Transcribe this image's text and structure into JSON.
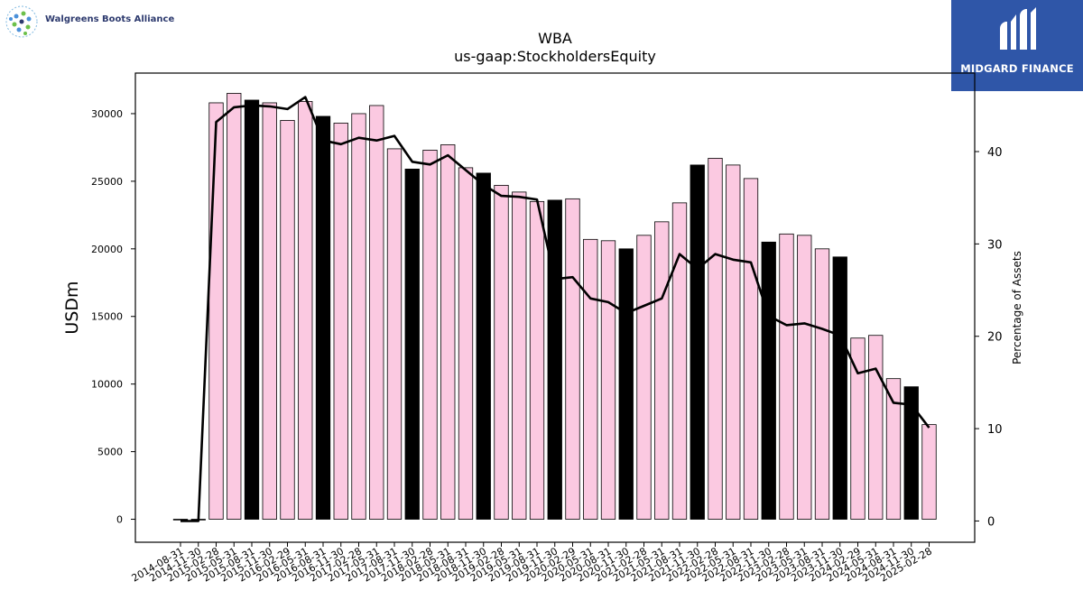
{
  "logos": {
    "left_text": "Walgreens Boots Alliance",
    "right_text": "MIDGARD FINANCE"
  },
  "chart_data": {
    "type": "bar",
    "title": "WBA",
    "subtitle": "us-gaap:StockholdersEquity",
    "ylabel": "USDm",
    "y2label": "Percentage of Assets",
    "ylim": [
      -1700,
      33000
    ],
    "y2lim": [
      -2.3,
      48.5
    ],
    "yticks": [
      0,
      5000,
      10000,
      15000,
      20000,
      25000,
      30000
    ],
    "y2ticks": [
      0,
      10,
      20,
      30,
      40
    ],
    "categories": [
      "2014-08-31",
      "2014-11-30",
      "2015-02-28",
      "2015-05-31",
      "2015-08-31",
      "2015-11-30",
      "2016-02-29",
      "2016-05-31",
      "2016-08-31",
      "2016-11-30",
      "2017-02-28",
      "2017-05-31",
      "2017-08-31",
      "2017-11-30",
      "2018-02-28",
      "2018-05-31",
      "2018-08-31",
      "2018-11-30",
      "2019-02-28",
      "2019-05-31",
      "2019-08-31",
      "2019-11-30",
      "2020-02-29",
      "2020-05-31",
      "2020-08-31",
      "2020-11-30",
      "2021-02-28",
      "2021-05-31",
      "2021-08-31",
      "2021-11-30",
      "2022-02-28",
      "2022-05-31",
      "2022-08-31",
      "2022-11-30",
      "2023-02-28",
      "2023-05-31",
      "2023-08-31",
      "2023-11-30",
      "2024-02-29",
      "2024-05-31",
      "2024-08-31",
      "2024-11-30",
      "2025-02-28"
    ],
    "series": [
      {
        "kind": "bar",
        "values": [
          0,
          0,
          30800,
          31500,
          31000,
          30800,
          29500,
          30900,
          29800,
          29300,
          30000,
          30600,
          27400,
          25900,
          27300,
          27700,
          26000,
          25600,
          24700,
          24200,
          23500,
          23600,
          23700,
          20700,
          20600,
          20000,
          21000,
          22000,
          23400,
          26200,
          26700,
          26200,
          25200,
          20500,
          21100,
          21000,
          20000,
          19400,
          13400,
          13600,
          10400,
          9800,
          7000
        ],
        "highlight": [
          4,
          8,
          13,
          17,
          21,
          25,
          29,
          33,
          37,
          41
        ]
      },
      {
        "kind": "line",
        "axis": "right",
        "values": [
          0,
          0,
          43.2,
          44.8,
          45.0,
          44.9,
          44.6,
          45.9,
          41.2,
          40.8,
          41.5,
          41.2,
          41.7,
          38.9,
          38.6,
          39.6,
          38.0,
          36.4,
          35.2,
          35.1,
          34.8,
          26.2,
          26.4,
          24.1,
          23.7,
          22.5,
          23.3,
          24.1,
          28.9,
          27.3,
          28.9,
          28.3,
          28.0,
          22.2,
          21.2,
          21.4,
          20.8,
          20.1,
          16.0,
          16.5,
          12.8,
          12.6,
          10.1
        ]
      }
    ],
    "colors": {
      "bar": "#fbc9e1",
      "bar_highlight": "#000000",
      "bar_edge": "#000000",
      "line": "#000000"
    }
  }
}
